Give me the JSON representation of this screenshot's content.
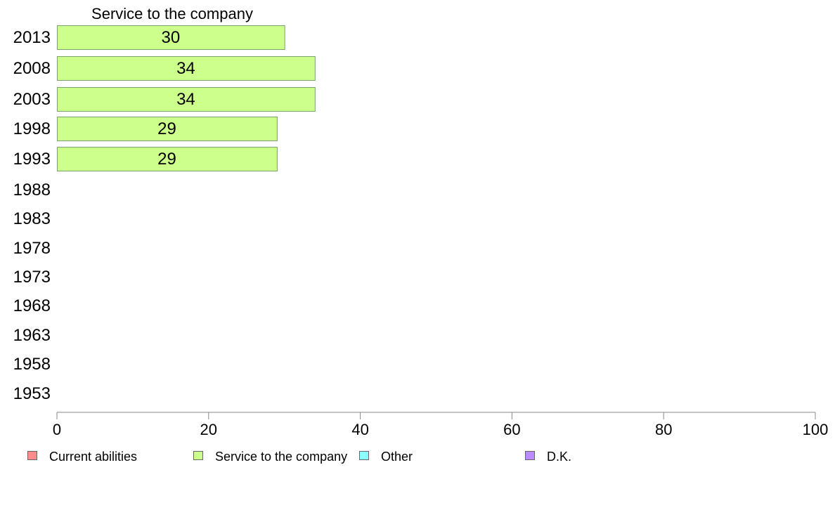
{
  "chart_data": {
    "type": "bar",
    "orientation": "horizontal",
    "stacked": true,
    "categories": [
      "2013",
      "2008",
      "2003",
      "1998",
      "1993",
      "1988",
      "1983",
      "1978",
      "1973",
      "1968",
      "1963",
      "1958",
      "1953"
    ],
    "series": [
      {
        "name": "Current abilities",
        "color": "#ff8c8c",
        "values": [
          null,
          null,
          null,
          null,
          null,
          null,
          null,
          null,
          null,
          null,
          null,
          null,
          null
        ]
      },
      {
        "name": "Service to the company",
        "color": "#ccff8c",
        "values": [
          30,
          34,
          34,
          29,
          29,
          null,
          null,
          null,
          null,
          null,
          null,
          null,
          null
        ],
        "labels": [
          "30",
          "34",
          "34",
          "29",
          "29"
        ]
      },
      {
        "name": "Other",
        "color": "#8cffff",
        "values": [
          null,
          null,
          null,
          null,
          null,
          null,
          null,
          null,
          null,
          null,
          null,
          null,
          null
        ]
      },
      {
        "name": "D.K.",
        "color": "#bb8cff",
        "values": [
          null,
          null,
          null,
          null,
          null,
          null,
          null,
          null,
          null,
          null,
          null,
          null,
          null
        ]
      }
    ],
    "section_title": "Service to the company",
    "xlim": [
      0,
      100
    ],
    "xticks": [
      "0",
      "20",
      "40",
      "60",
      "80",
      "100"
    ],
    "grid": false,
    "legend_position": "bottom"
  }
}
